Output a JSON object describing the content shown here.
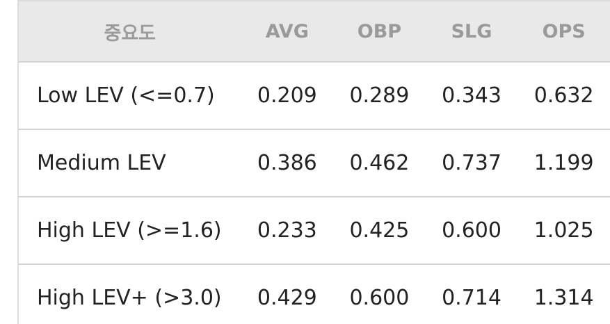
{
  "table": {
    "header": [
      "중요도",
      "AVG",
      "OBP",
      "SLG",
      "OPS"
    ],
    "rows": [
      [
        "Low LEV (<=0.7)",
        "0.209",
        "0.289",
        "0.343",
        "0.632"
      ],
      [
        "Medium LEV",
        "0.386",
        "0.462",
        "0.737",
        "1.199"
      ],
      [
        "High LEV (>=1.6)",
        "0.233",
        "0.425",
        "0.600",
        "1.025"
      ],
      [
        "High LEV+ (>3.0)",
        "0.429",
        "0.600",
        "0.714",
        "1.314"
      ]
    ]
  }
}
